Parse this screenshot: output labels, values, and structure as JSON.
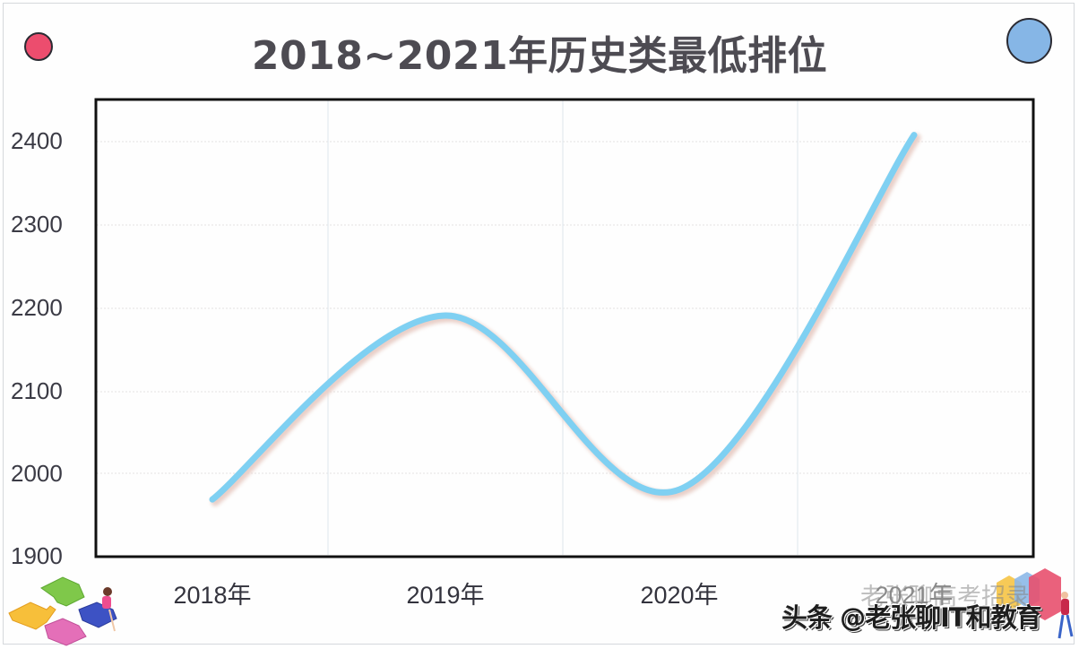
{
  "title": "2018~2021年历史类最低排位",
  "colors": {
    "line": "#7fd0f2",
    "line_shadow": "#e8c8c0",
    "title": "#4d4b52",
    "frame": "#111111",
    "grid": "#e6e9ee",
    "dot_left": "#ec4d6e",
    "dot_right": "#86b6e6"
  },
  "y_axis": {
    "ticks": [
      "2400",
      "2300",
      "2200",
      "2100",
      "2000",
      "1900"
    ]
  },
  "x_axis": {
    "ticks": [
      "2018年",
      "2019年",
      "2020年",
      "2021年"
    ]
  },
  "watermark": {
    "primary": "头条 @老张聊IT和教育",
    "ghost": "老张聊高考招录"
  },
  "chart_data": {
    "type": "line",
    "title": "2018~2021年历史类最低排位",
    "categories": [
      "2018年",
      "2019年",
      "2020年",
      "2021年"
    ],
    "series": [
      {
        "name": "历史类最低排位",
        "values": [
          1968,
          2190,
          1980,
          2408
        ]
      }
    ],
    "xlabel": "",
    "ylabel": "",
    "ylim": [
      1900,
      2450
    ],
    "yticks": [
      1900,
      2000,
      2100,
      2200,
      2300,
      2400
    ],
    "grid": true,
    "smooth": true,
    "legend": "none"
  }
}
